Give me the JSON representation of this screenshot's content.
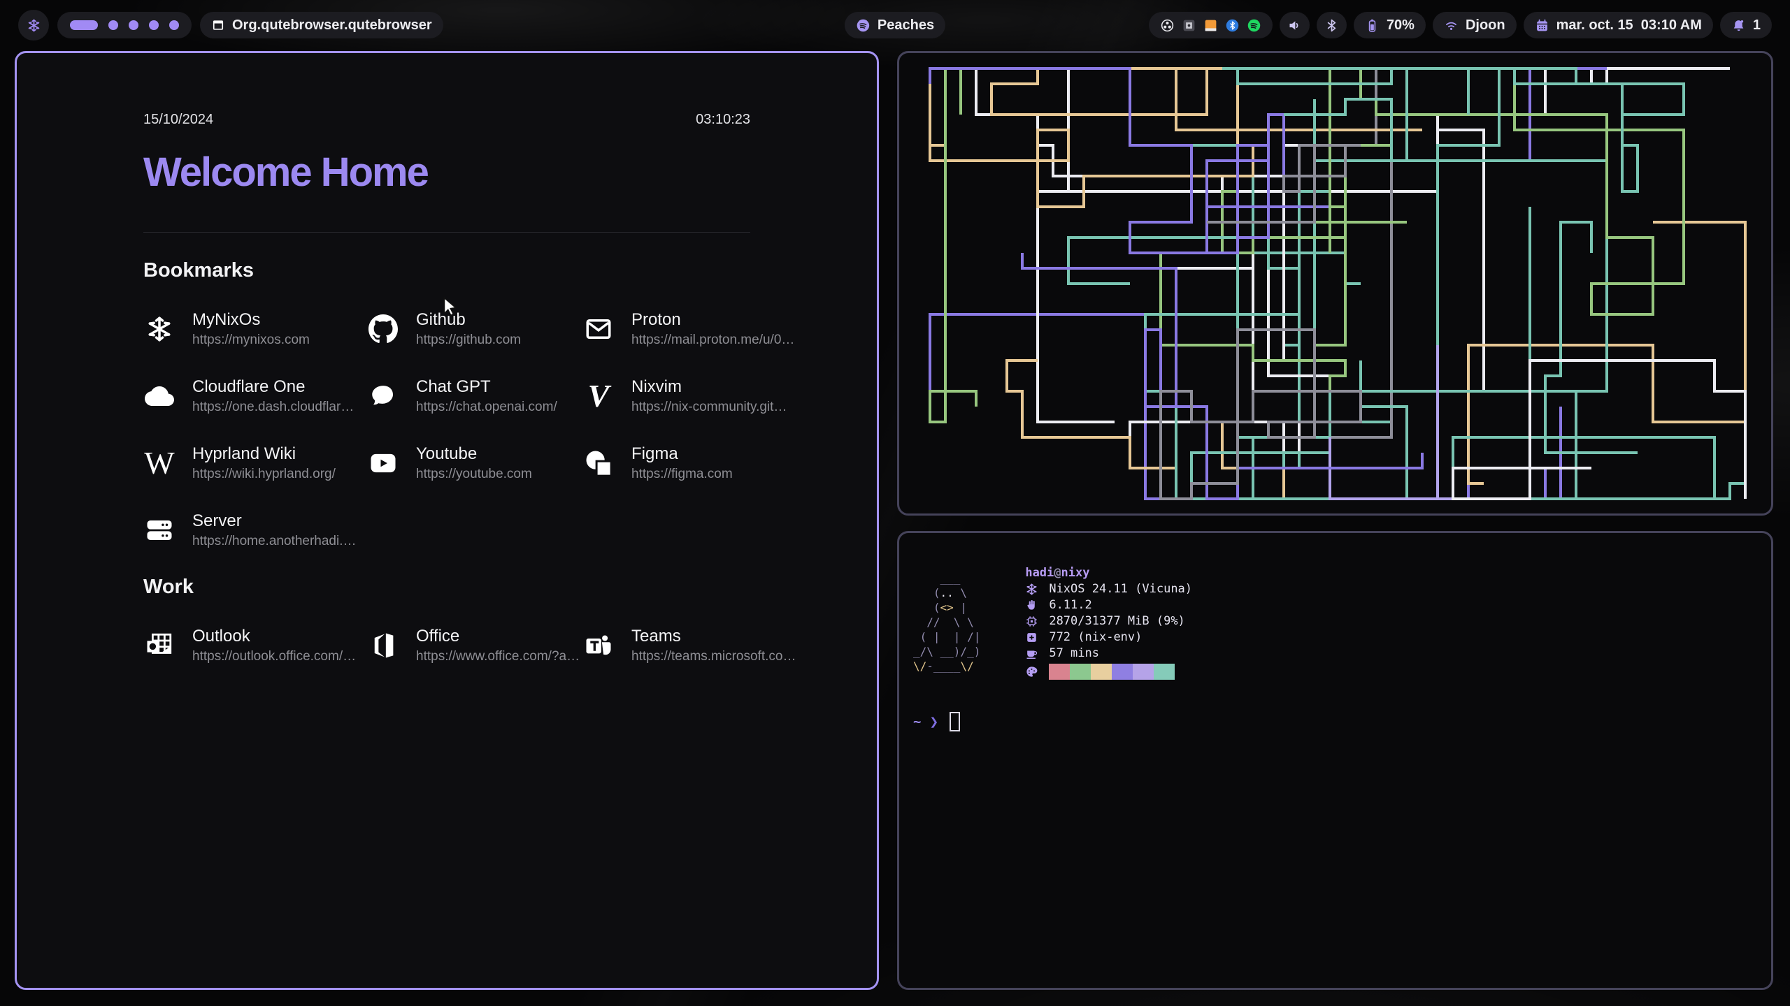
{
  "colors": {
    "accent": "#a18af4",
    "active_border": "#a493f2",
    "inactive_border": "#45435a",
    "pill_bg": "#1c1c21",
    "title_purple": "#9c89f1"
  },
  "topbar": {
    "launcher_icon": "nixos-snowflake-icon",
    "workspaces": {
      "count": 5,
      "active_index": 0
    },
    "window_title": "Org.qutebrowser.qutebrowser",
    "media": {
      "label": "Peaches",
      "icon": "spotify-icon"
    },
    "tray_icons": [
      "obs",
      "keepassxc",
      "files",
      "bluetooth-circle",
      "spotify"
    ],
    "battery": {
      "percent": "70%"
    },
    "network": {
      "ssid": "Djoon"
    },
    "clock": {
      "label": "mar. oct. 15  03:10 AM"
    },
    "notifications": {
      "count": "1"
    }
  },
  "startpage": {
    "date": "15/10/2024",
    "time": "03:10:23",
    "title": "Welcome Home",
    "sections": [
      {
        "heading": "Bookmarks",
        "items": [
          {
            "name": "MyNixOs",
            "url": "https://mynixos.com",
            "icon": "nixos"
          },
          {
            "name": "Github",
            "url": "https://github.com",
            "icon": "github"
          },
          {
            "name": "Proton",
            "url": "https://mail.proton.me/u/0…",
            "icon": "mail"
          },
          {
            "name": "Cloudflare One",
            "url": "https://one.dash.cloudflar…",
            "icon": "cloud"
          },
          {
            "name": "Chat GPT",
            "url": "https://chat.openai.com/",
            "icon": "chat"
          },
          {
            "name": "Nixvim",
            "url": "https://nix-community.git…",
            "icon": "vim"
          },
          {
            "name": "Hyprland Wiki",
            "url": "https://wiki.hyprland.org/",
            "icon": "wikipedia"
          },
          {
            "name": "Youtube",
            "url": "https://youtube.com",
            "icon": "youtube"
          },
          {
            "name": "Figma",
            "url": "https://figma.com",
            "icon": "figma"
          },
          {
            "name": "Server",
            "url": "https://home.anotherhadi.…",
            "icon": "server"
          }
        ]
      },
      {
        "heading": "Work",
        "items": [
          {
            "name": "Outlook",
            "url": "https://outlook.office.com/…",
            "icon": "outlook"
          },
          {
            "name": "Office",
            "url": "https://www.office.com/?a…",
            "icon": "office"
          },
          {
            "name": "Teams",
            "url": "https://teams.microsoft.co…",
            "icon": "teams"
          }
        ]
      }
    ]
  },
  "terminal": {
    "user": "hadi",
    "at": "@",
    "host": "nixy",
    "rows": [
      {
        "icon": "nixos",
        "text": "NixOS 24.11 (Vicuna)"
      },
      {
        "icon": "kernel",
        "text": "6.11.2"
      },
      {
        "icon": "memory",
        "text": "2870/31377 MiB (9%)"
      },
      {
        "icon": "packages",
        "text": "772 (nix-env)"
      },
      {
        "icon": "uptime",
        "text": "57 mins"
      }
    ],
    "palette_icon": "palette",
    "palette": [
      "#d9838f",
      "#8cc88f",
      "#e8cf9f",
      "#8f7fe2",
      "#b5a3e8",
      "#85cbb9"
    ],
    "prompt_path": "~",
    "prompt_symbol": "❯",
    "ascii_art": [
      [
        {
          "t": "    ___",
          "c": "fg"
        }
      ],
      [
        {
          "t": "   (",
          "c": "fg"
        },
        {
          "t": "..",
          "c": "white"
        },
        {
          "t": " \\",
          "c": "fg"
        }
      ],
      [
        {
          "t": "   (",
          "c": "fg"
        },
        {
          "t": "<>",
          "c": "yellow"
        },
        {
          "t": " |",
          "c": "fg"
        }
      ],
      [
        {
          "t": "  //  \\ \\",
          "c": "fg"
        }
      ],
      [
        {
          "t": " ( |  | /|",
          "c": "fg"
        }
      ],
      [
        {
          "t": "_/\\ __)/_)",
          "c": "fg"
        }
      ],
      [
        {
          "t": "\\/",
          "c": "yellow"
        },
        {
          "t": "-____",
          "c": "fg"
        },
        {
          "t": "\\/",
          "c": "yellow"
        }
      ]
    ]
  },
  "pipes": {
    "seed": 20,
    "count": 34,
    "colors": [
      {
        "hex": "#79c4b2",
        "w": 7
      },
      {
        "hex": "#8a79e3",
        "w": 3
      },
      {
        "hex": "#b2a4ec",
        "w": 1.5
      },
      {
        "hex": "#97c67f",
        "w": 2
      },
      {
        "hex": "#e6c795",
        "w": 2
      },
      {
        "hex": "#ececf2",
        "w": 1.5
      },
      {
        "hex": "#8e8e99",
        "w": 1
      }
    ]
  }
}
